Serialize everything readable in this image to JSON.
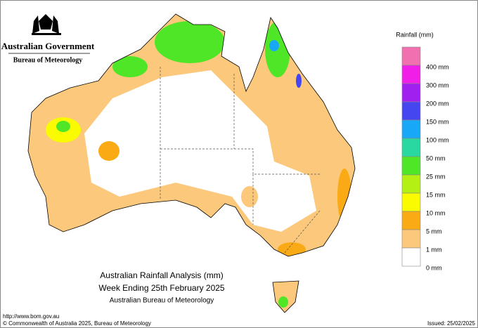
{
  "header": {
    "government": "Australian Government",
    "bureau": "Bureau of Meteorology"
  },
  "legend": {
    "title": "Rainfall (mm)",
    "items": [
      {
        "label": "400 mm",
        "color": "#f070b0"
      },
      {
        "label": "300 mm",
        "color": "#f01ee6"
      },
      {
        "label": "200 mm",
        "color": "#a020f0"
      },
      {
        "label": "150 mm",
        "color": "#4646f0"
      },
      {
        "label": "100 mm",
        "color": "#18a8f8"
      },
      {
        "label": "50 mm",
        "color": "#28d8a0"
      },
      {
        "label": "25 mm",
        "color": "#50e628"
      },
      {
        "label": "15 mm",
        "color": "#b4f014"
      },
      {
        "label": "10 mm",
        "color": "#fafa00"
      },
      {
        "label": "5 mm",
        "color": "#faaa14"
      },
      {
        "label": "1 mm",
        "color": "#fcc87c"
      },
      {
        "label": "0 mm",
        "color": "#ffffff"
      }
    ]
  },
  "title": {
    "line1": "Australian Rainfall Analysis (mm)",
    "line2": "Week Ending 25th February 2025",
    "line3": "Australian Bureau of Meteorology"
  },
  "footer": {
    "url": "http://www.bom.gov.au",
    "copyright": "© Commonwealth of Australia 2025, Bureau of Meteorology",
    "issued": "Issued: 25/02/2025"
  }
}
